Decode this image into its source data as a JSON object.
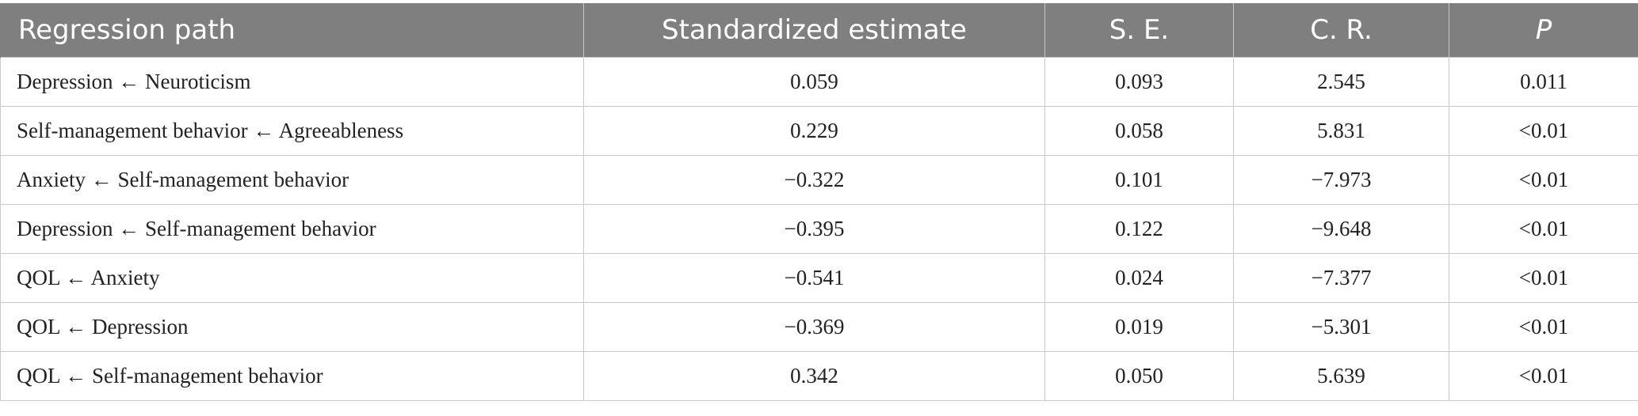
{
  "table": {
    "headers": [
      "Regression path",
      "Standardized estimate",
      "S. E.",
      "C. R.",
      "P"
    ],
    "rows": [
      [
        "Depression ← Neuroticism",
        "0.059",
        "0.093",
        "2.545",
        "0.011"
      ],
      [
        "Self-management behavior ← Agreeableness",
        "0.229",
        "0.058",
        "5.831",
        "<0.01"
      ],
      [
        "Anxiety ← Self-management behavior",
        "−0.322",
        "0.101",
        "−7.973",
        "<0.01"
      ],
      [
        "Depression ← Self-management behavior",
        "−0.395",
        "0.122",
        "−9.648",
        "<0.01"
      ],
      [
        "QOL ← Anxiety",
        "−0.541",
        "0.024",
        "−7.377",
        "<0.01"
      ],
      [
        "QOL ← Depression",
        "−0.369",
        "0.019",
        "−5.301",
        "<0.01"
      ],
      [
        "QOL ← Self-management behavior",
        "0.342",
        "0.050",
        "5.639",
        "<0.01"
      ]
    ],
    "header_bg": "#7f7f7f",
    "header_fg": "#ffffff",
    "border_color": "#c9c9c9"
  }
}
